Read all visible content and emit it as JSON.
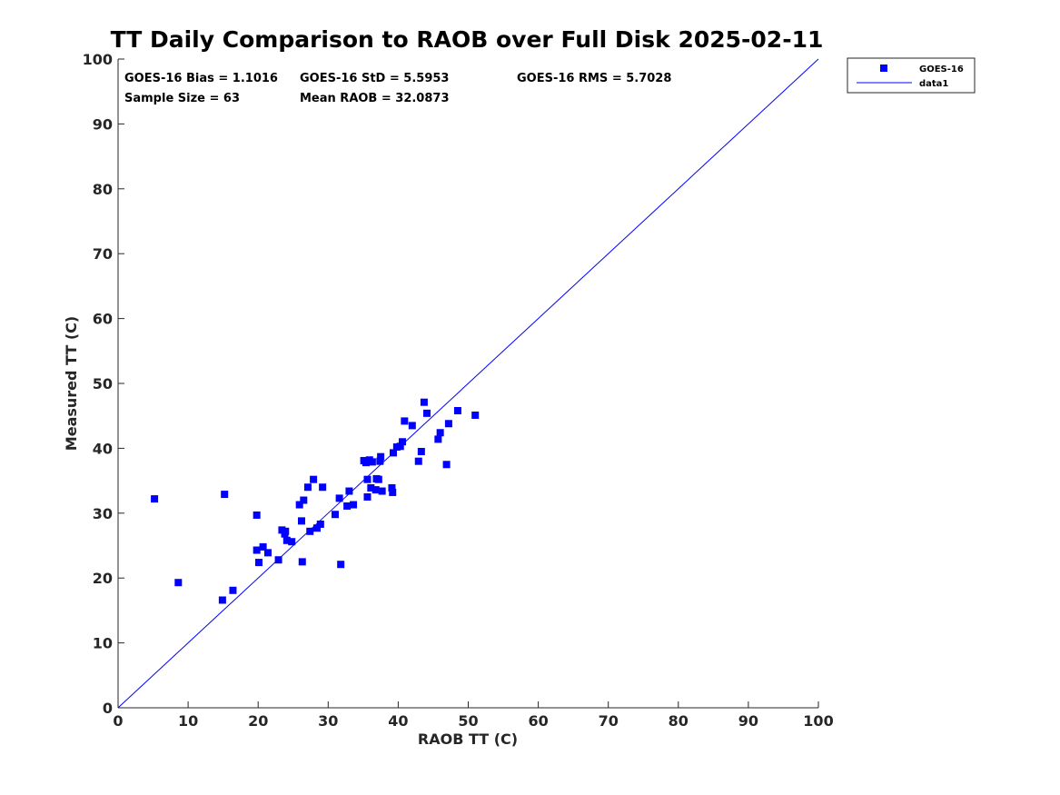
{
  "chart_data": {
    "type": "scatter",
    "title": "TT Daily Comparison to RAOB over Full Disk 2025-02-11",
    "xlabel": "RAOB TT (C)",
    "ylabel": "Measured TT (C)",
    "xlim": [
      0,
      100
    ],
    "ylim": [
      0,
      100
    ],
    "xticks": [
      "0",
      "10",
      "20",
      "30",
      "40",
      "50",
      "60",
      "70",
      "80",
      "90",
      "100"
    ],
    "yticks": [
      "0",
      "10",
      "20",
      "30",
      "40",
      "50",
      "60",
      "70",
      "80",
      "90",
      "100"
    ],
    "grid": false,
    "legend_position": "outside-top-right",
    "stats": {
      "bias": "GOES-16 Bias = 1.1016",
      "std": "GOES-16 StD = 5.5953",
      "rms": "GOES-16 RMS = 5.7028",
      "sample_size": "Sample Size = 63",
      "mean_raob": "Mean RAOB = 32.0873"
    },
    "series": [
      {
        "name": "GOES-16",
        "kind": "scatter",
        "marker": "square",
        "color": "#0000ff",
        "points": [
          [
            5.2,
            32.2
          ],
          [
            8.6,
            19.3
          ],
          [
            14.9,
            16.6
          ],
          [
            15.2,
            32.9
          ],
          [
            16.4,
            18.1
          ],
          [
            19.8,
            29.7
          ],
          [
            19.8,
            24.3
          ],
          [
            20.1,
            22.4
          ],
          [
            20.7,
            24.8
          ],
          [
            21.4,
            23.9
          ],
          [
            22.9,
            22.8
          ],
          [
            23.4,
            27.4
          ],
          [
            23.8,
            26.8
          ],
          [
            23.9,
            27.2
          ],
          [
            24.1,
            25.8
          ],
          [
            24.8,
            25.6
          ],
          [
            25.9,
            31.3
          ],
          [
            26.2,
            28.8
          ],
          [
            26.3,
            22.5
          ],
          [
            26.5,
            32.0
          ],
          [
            27.1,
            34.0
          ],
          [
            27.4,
            27.2
          ],
          [
            27.9,
            35.2
          ],
          [
            28.4,
            27.7
          ],
          [
            28.9,
            28.3
          ],
          [
            29.2,
            34.0
          ],
          [
            31.0,
            29.8
          ],
          [
            31.6,
            32.3
          ],
          [
            31.8,
            22.1
          ],
          [
            32.7,
            31.1
          ],
          [
            33.0,
            33.4
          ],
          [
            33.6,
            31.3
          ],
          [
            35.1,
            38.1
          ],
          [
            35.4,
            37.8
          ],
          [
            35.6,
            32.5
          ],
          [
            35.6,
            35.2
          ],
          [
            35.9,
            38.2
          ],
          [
            36.1,
            33.9
          ],
          [
            36.3,
            37.9
          ],
          [
            36.8,
            33.6
          ],
          [
            36.9,
            35.3
          ],
          [
            37.2,
            35.2
          ],
          [
            37.4,
            38.0
          ],
          [
            37.5,
            38.7
          ],
          [
            37.7,
            33.4
          ],
          [
            39.1,
            33.9
          ],
          [
            39.2,
            33.2
          ],
          [
            39.3,
            39.3
          ],
          [
            39.8,
            40.2
          ],
          [
            40.3,
            40.3
          ],
          [
            40.6,
            41.0
          ],
          [
            40.9,
            44.2
          ],
          [
            42.0,
            43.5
          ],
          [
            42.9,
            38.0
          ],
          [
            43.3,
            39.5
          ],
          [
            43.7,
            47.1
          ],
          [
            44.1,
            45.4
          ],
          [
            45.7,
            41.4
          ],
          [
            46.0,
            42.4
          ],
          [
            46.9,
            37.5
          ],
          [
            47.2,
            43.8
          ],
          [
            48.5,
            45.8
          ],
          [
            51.0,
            45.1
          ]
        ]
      },
      {
        "name": "data1",
        "kind": "line",
        "color": "#0000ff",
        "points": [
          [
            0,
            0
          ],
          [
            100,
            100
          ]
        ]
      }
    ]
  }
}
